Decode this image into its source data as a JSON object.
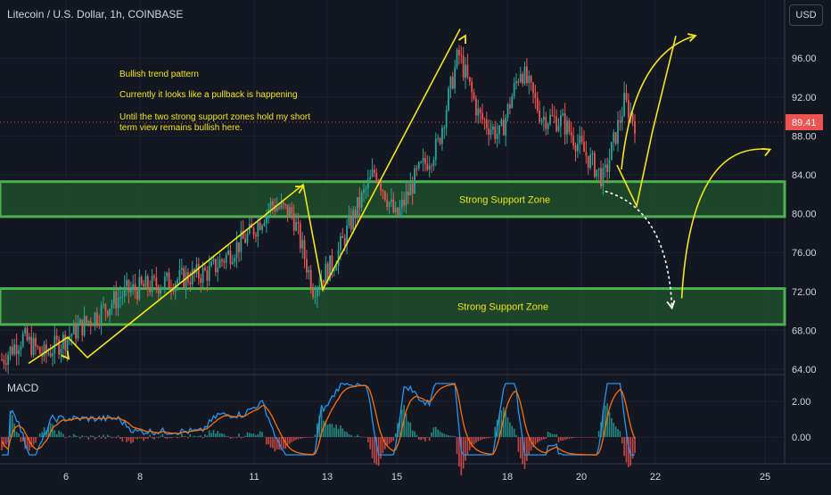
{
  "header": {
    "symbol_title": "Litecoin / U.S. Dollar, 1h, COINBASE",
    "currency_button": "USD"
  },
  "indicator": {
    "label": "MACD"
  },
  "annotations": {
    "line1": "Bullish trend pattern",
    "line2": "Currently it looks like a pullback is happening",
    "line3a": "Until the two strong support zones hold my short",
    "line3b": "term view remains bullish here."
  },
  "zones": [
    {
      "label": "Strong Support Zone",
      "low": 79.7,
      "high": 83.3
    },
    {
      "label": "Strong Support Zone",
      "low": 68.6,
      "high": 72.3
    }
  ],
  "price_axis": {
    "ticks": [
      "96.00",
      "92.00",
      "88.00",
      "84.00",
      "80.00",
      "76.00",
      "72.00",
      "68.00",
      "64.00"
    ],
    "last_price": "89.41",
    "last_value": 89.41
  },
  "macd_axis": {
    "ticks": [
      "2.00",
      "0.00"
    ]
  },
  "time_axis": {
    "ticks": [
      "6",
      "8",
      "11",
      "13",
      "15",
      "18",
      "20",
      "22",
      "25"
    ]
  },
  "colors": {
    "background": "#131722",
    "up": "#26a69a",
    "down": "#ef5350",
    "support_zone_fill": "#1e4d2b",
    "support_zone_border": "#4caf50",
    "drawing": "#f5e614",
    "projection": "#ffffff",
    "macd_line": "#2196f3",
    "signal_line": "#ff6d00"
  },
  "chart_data": {
    "type": "candlestick",
    "y_range": [
      64,
      99.5
    ],
    "trend_lines": [
      [
        [
          0,
          64.6
        ],
        [
          2,
          67.3
        ],
        [
          3,
          65.2
        ],
        [
          14,
          83.0
        ],
        [
          15,
          72.2
        ],
        [
          22,
          99.0
        ]
      ],
      [
        [
          30,
          85.0
        ],
        [
          31,
          80.8
        ],
        [
          31.8,
          88.4
        ],
        [
          33,
          98.3
        ]
      ]
    ],
    "projection_path": [
      [
        29.4,
        82.3
      ],
      [
        32.8,
        70.3
      ]
    ],
    "rebound_arrow": [
      [
        33.3,
        71.3
      ],
      [
        37.8,
        86.6
      ]
    ],
    "anchors": [
      0,
      65.0,
      1,
      67.3,
      2,
      65.4,
      6,
      72.0,
      10,
      74.0,
      12,
      78.0,
      13,
      81.0,
      14,
      80.0,
      15,
      72.4,
      16,
      75.0,
      17,
      80.0,
      18,
      84.5,
      19,
      79.5,
      20,
      84.0,
      21,
      87.0,
      22,
      96.5,
      23,
      90.0,
      24,
      88.0,
      25,
      95.0,
      26,
      90.0,
      27,
      89.5,
      28,
      86.5,
      29,
      83.5,
      30,
      91.5,
      30.5,
      89.4
    ]
  }
}
